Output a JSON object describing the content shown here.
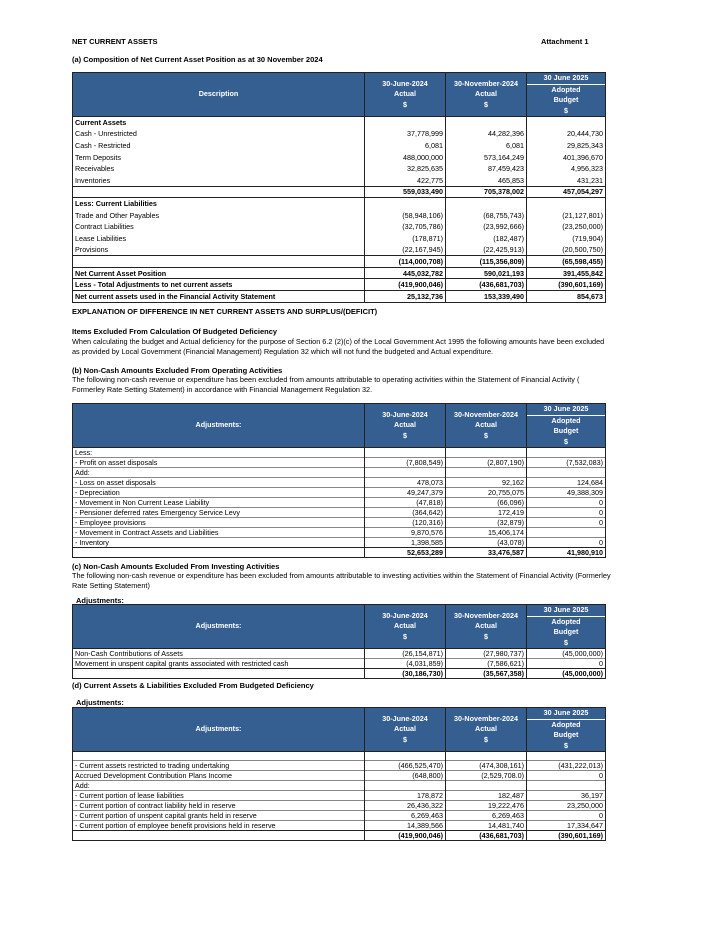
{
  "header": {
    "title": "NET CURRENT ASSETS",
    "attachment": "Attachment 1"
  },
  "section_a": {
    "title": "(a) Composition of  Net Current Asset Position as at 30 November 2024"
  },
  "columns": {
    "c1": [
      "30-June-2024",
      "Actual",
      "$"
    ],
    "c2": [
      "30-November-2024",
      "Actual",
      "$"
    ],
    "c3_top": "30 June 2025",
    "c3": [
      "Adopted",
      "Budget",
      "$"
    ]
  },
  "table_a": {
    "desc_header": "Description",
    "rows": [
      {
        "type": "head",
        "label": "Current Assets",
        "values": [
          "",
          "",
          ""
        ]
      },
      {
        "type": "row",
        "label": "Cash - Unrestricted",
        "values": [
          "37,778,999",
          "44,282,396",
          "20,444,730"
        ]
      },
      {
        "type": "row",
        "label": "Cash - Restricted",
        "values": [
          "6,081",
          "6,081",
          "29,825,343"
        ]
      },
      {
        "type": "row",
        "label": "Term Deposits",
        "values": [
          "488,000,000",
          "573,164,249",
          "401,396,670"
        ]
      },
      {
        "type": "row",
        "label": "Receivables",
        "values": [
          "32,825,635",
          "87,459,423",
          "4,956,323"
        ]
      },
      {
        "type": "row",
        "label": "Inventories",
        "values": [
          "422,775",
          "465,853",
          "431,231"
        ]
      },
      {
        "type": "subtotal",
        "label": "",
        "values": [
          "559,033,490",
          "705,378,002",
          "457,054,297"
        ]
      },
      {
        "type": "head",
        "label": "Less: Current Liabilities",
        "values": [
          "",
          "",
          ""
        ]
      },
      {
        "type": "row",
        "label": "Trade and Other Payables",
        "values": [
          "(58,948,106)",
          "(68,755,743)",
          "(21,127,801)"
        ]
      },
      {
        "type": "row",
        "label": "Contract Liabilities",
        "values": [
          "(32,705,786)",
          "(23,992,666)",
          "(23,250,000)"
        ]
      },
      {
        "type": "row",
        "label": "Lease Liabilities",
        "values": [
          "(178,871)",
          "(182,487)",
          "(719,904)"
        ]
      },
      {
        "type": "row",
        "label": "Provisions",
        "values": [
          "(22,167,945)",
          "(22,425,913)",
          "(20,500,750)"
        ]
      },
      {
        "type": "total",
        "label": "",
        "values": [
          "(114,000,708)",
          "(115,356,809)",
          "(65,598,455)"
        ]
      },
      {
        "type": "boxed",
        "label": "Net Current Asset Position",
        "values": [
          "445,032,782",
          "590,021,193",
          "391,455,842"
        ]
      },
      {
        "type": "boxed",
        "label": "Less - Total Adjustments to net current assets",
        "values": [
          "(419,900,046)",
          "(436,681,703)",
          "(390,601,169)"
        ]
      },
      {
        "type": "boxed",
        "label": "Net current assets used in the Financial Activity Statement",
        "values": [
          "25,132,736",
          "153,339,490",
          "854,673"
        ]
      }
    ]
  },
  "explanation": {
    "title": "EXPLANATION OF DIFFERENCE IN NET CURRENT ASSETS AND SURPLUS/(DEFICIT)",
    "items_title": "Items Excluded From Calculation Of Budgeted Deficiency",
    "items_text": "When calculating the budget and Actual deficiency for the purpose of Section 6.2 (2)(c) of the Local Government Act 1995 the following amounts have been excluded as provided by Local Government (Financial Management) Regulation 32 which will not fund the budgeted  and Actual expenditure.",
    "b_title": "(b) Non-Cash Amounts Excluded From Operating Activities",
    "b_text": "The following non-cash revenue or expenditure has been excluded from amounts attributable to operating activities within the Statement of Financial Activity ( Formerley Rate Setting Statement) in accordance with Financial Management Regulation 32.",
    "c_title": "(c)  Non-Cash Amounts Excluded From Investing Activities",
    "c_text": "The following non-cash revenue or expenditure has been excluded from amounts attributable to investing activities within the Statement of Financial Activity (Formerley Rate Setting Statement)",
    "c_adj": "Adjustments:",
    "d_title": "(d) Current Assets & Liabilities Excluded From Budgeted Deficiency",
    "d_adj": "Adjustments:"
  },
  "table_b": {
    "desc_header": "Adjustments:",
    "rows": [
      {
        "type": "row",
        "label": "Less:",
        "values": [
          "",
          "",
          ""
        ]
      },
      {
        "type": "row",
        "label": "- Profit on asset disposals",
        "values": [
          "(7,808,549)",
          "(2,807,190)",
          "(7,532,083)"
        ]
      },
      {
        "type": "row",
        "label": "Add:",
        "values": [
          "",
          "",
          ""
        ]
      },
      {
        "type": "row",
        "label": "-  Loss on asset disposals",
        "values": [
          "478,073",
          "92,162",
          "124,684"
        ]
      },
      {
        "type": "row",
        "label": "- Depreciation",
        "values": [
          "49,247,379",
          "20,755,075",
          "49,388,309"
        ]
      },
      {
        "type": "row",
        "label": "- Movement in Non Current Lease Liability",
        "values": [
          "(47,818)",
          "(66,096)",
          "0"
        ]
      },
      {
        "type": "row",
        "label": "- Pensioner deferred rates Emergency Service Levy",
        "values": [
          "(364,642)",
          "172,419",
          "0"
        ]
      },
      {
        "type": "row",
        "label": "- Employee provisions",
        "values": [
          "(120,316)",
          "(32,879)",
          "0"
        ]
      },
      {
        "type": "row",
        "label": "- Movement in Contract Assets and Liabilities",
        "values": [
          "9,870,576",
          "15,406,174",
          ""
        ]
      },
      {
        "type": "row",
        "label": "- Inventory",
        "values": [
          "1,398,585",
          "(43,078)",
          "0"
        ]
      },
      {
        "type": "total",
        "label": "",
        "values": [
          "52,653,289",
          "33,476,587",
          "41,980,910"
        ]
      }
    ]
  },
  "table_c": {
    "desc_header": "Adjustments:",
    "rows": [
      {
        "type": "row",
        "label": "Non-Cash Contributions of Assets",
        "values": [
          "(26,154,871)",
          "(27,980,737)",
          "(45,000,000)"
        ]
      },
      {
        "type": "row",
        "label": "Movement in unspent capital grants associated with restricted cash",
        "values": [
          "(4,031,859)",
          "(7,586,621)",
          "0"
        ]
      },
      {
        "type": "total",
        "label": "",
        "values": [
          "(30,186,730)",
          "(35,567,358)",
          "(45,000,000)"
        ]
      }
    ]
  },
  "table_d": {
    "desc_header": "Adjustments:",
    "rows": [
      {
        "type": "row",
        "label": "",
        "values": [
          "",
          "",
          ""
        ]
      },
      {
        "type": "row",
        "label": "- Current assets restricted to trading undertaking",
        "values": [
          "(466,525,470)",
          "(474,308,161)",
          "(431,222,013)"
        ]
      },
      {
        "type": "row",
        "label": "Accrued Development Contribution Plans Income",
        "values": [
          "(648,800)",
          "(2,529,708.0)",
          "0"
        ]
      },
      {
        "type": "row",
        "label": "Add:",
        "values": [
          "",
          "",
          ""
        ]
      },
      {
        "type": "row",
        "label": "- Current portion of lease liabilities",
        "values": [
          "178,872",
          "182,487",
          "36,197"
        ]
      },
      {
        "type": "row",
        "label": "- Current portion of contract liability held in reserve",
        "values": [
          "26,436,322",
          "19,222,476",
          "23,250,000"
        ]
      },
      {
        "type": "row",
        "label": "- Current portion of unspent capital grants held in reserve",
        "values": [
          "6,269,463",
          "6,269,463",
          "0"
        ]
      },
      {
        "type": "row",
        "label": "- Current portion of employee benefit provisions held in reserve",
        "values": [
          "14,389,566",
          "14,481,740",
          "17,334,647"
        ]
      },
      {
        "type": "total",
        "label": "",
        "values": [
          "(419,900,046)",
          "(436,681,703)",
          "(390,601,169)"
        ]
      }
    ]
  }
}
